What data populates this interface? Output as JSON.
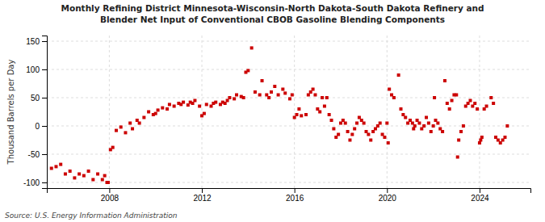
{
  "chart_data": {
    "type": "scatter",
    "title": "Monthly Refining District Minnesota-Wisconsin-North Dakota-South Dakota Refinery and\nBlender Net Input of Conventional CBOB Gasoline Blending Components",
    "y_label": "Thousand Barrels per Day",
    "annotations": [
      "Source: U.S. Energy Information Administration"
    ],
    "color": "#cc0000",
    "marker": "square",
    "grid": true,
    "xlim": [
      2005.3,
      2026.2
    ],
    "ylim": [
      -110,
      160
    ],
    "xticks": [
      2008,
      2012,
      2016,
      2020,
      2024
    ],
    "yticks": [
      -100,
      -50,
      0,
      50,
      100,
      150
    ],
    "x": [
      2005.5,
      2005.7,
      2005.9,
      2006.1,
      2006.3,
      2006.5,
      2006.7,
      2006.9,
      2007.1,
      2007.3,
      2007.5,
      2007.7,
      2007.8,
      2007.9,
      2007.95,
      2008.05,
      2008.15,
      2008.3,
      2008.5,
      2008.7,
      2008.9,
      2009.0,
      2009.2,
      2009.3,
      2009.5,
      2009.7,
      2009.9,
      2010.0,
      2010.1,
      2010.3,
      2010.5,
      2010.6,
      2010.8,
      2011.0,
      2011.1,
      2011.2,
      2011.4,
      2011.5,
      2011.6,
      2011.7,
      2011.9,
      2012.0,
      2012.1,
      2012.2,
      2012.4,
      2012.5,
      2012.6,
      2012.8,
      2012.9,
      2013.0,
      2013.1,
      2013.2,
      2013.4,
      2013.5,
      2013.7,
      2013.8,
      2013.9,
      2014.0,
      2014.15,
      2014.3,
      2014.5,
      2014.6,
      2014.8,
      2014.9,
      2015.0,
      2015.15,
      2015.3,
      2015.5,
      2015.6,
      2015.8,
      2015.9,
      2016.0,
      2016.1,
      2016.2,
      2016.3,
      2016.5,
      2016.6,
      2016.7,
      2016.8,
      2016.9,
      2017.0,
      2017.1,
      2017.2,
      2017.3,
      2017.4,
      2017.5,
      2017.6,
      2017.7,
      2017.8,
      2017.9,
      2018.0,
      2018.1,
      2018.2,
      2018.3,
      2018.4,
      2018.5,
      2018.6,
      2018.7,
      2018.8,
      2018.9,
      2019.0,
      2019.1,
      2019.2,
      2019.3,
      2019.4,
      2019.5,
      2019.6,
      2019.7,
      2019.8,
      2019.9,
      2020.0,
      2020.05,
      2020.1,
      2020.2,
      2020.3,
      2020.5,
      2020.6,
      2020.7,
      2020.8,
      2020.9,
      2021.0,
      2021.1,
      2021.15,
      2021.2,
      2021.3,
      2021.4,
      2021.5,
      2021.6,
      2021.7,
      2021.8,
      2021.9,
      2022.0,
      2022.05,
      2022.1,
      2022.2,
      2022.3,
      2022.4,
      2022.5,
      2022.6,
      2022.7,
      2022.8,
      2022.9,
      2023.0,
      2023.05,
      2023.1,
      2023.2,
      2023.3,
      2023.4,
      2023.5,
      2023.6,
      2023.7,
      2023.8,
      2023.9,
      2024.0,
      2024.05,
      2024.1,
      2024.2,
      2024.3,
      2024.5,
      2024.6,
      2024.7,
      2024.8,
      2024.9,
      2025.0,
      2025.1,
      2025.2
    ],
    "values": [
      -75,
      -72,
      -68,
      -85,
      -80,
      -92,
      -85,
      -88,
      -80,
      -95,
      -85,
      -95,
      -88,
      -100,
      -100,
      -42,
      -38,
      -8,
      -2,
      -12,
      5,
      -5,
      10,
      5,
      15,
      25,
      20,
      22,
      28,
      32,
      30,
      38,
      35,
      40,
      38,
      42,
      37,
      42,
      40,
      45,
      35,
      18,
      22,
      38,
      35,
      40,
      42,
      38,
      42,
      40,
      45,
      50,
      48,
      55,
      52,
      50,
      95,
      98,
      138,
      60,
      55,
      80,
      55,
      50,
      60,
      70,
      55,
      65,
      58,
      48,
      55,
      15,
      20,
      30,
      18,
      20,
      55,
      60,
      65,
      55,
      30,
      25,
      50,
      35,
      50,
      20,
      10,
      -5,
      -20,
      -15,
      5,
      10,
      5,
      -10,
      -25,
      -15,
      -5,
      5,
      15,
      10,
      5,
      -10,
      -15,
      -25,
      -10,
      -5,
      0,
      5,
      -15,
      -20,
      5,
      -30,
      65,
      55,
      50,
      90,
      30,
      20,
      15,
      5,
      10,
      5,
      -5,
      0,
      10,
      5,
      -5,
      0,
      15,
      5,
      -10,
      0,
      50,
      10,
      5,
      -5,
      -10,
      80,
      40,
      30,
      45,
      55,
      55,
      -55,
      -25,
      -10,
      0,
      35,
      40,
      45,
      35,
      40,
      30,
      -30,
      -25,
      -20,
      30,
      35,
      50,
      40,
      -20,
      -25,
      -30,
      -25,
      -20,
      0
    ]
  }
}
